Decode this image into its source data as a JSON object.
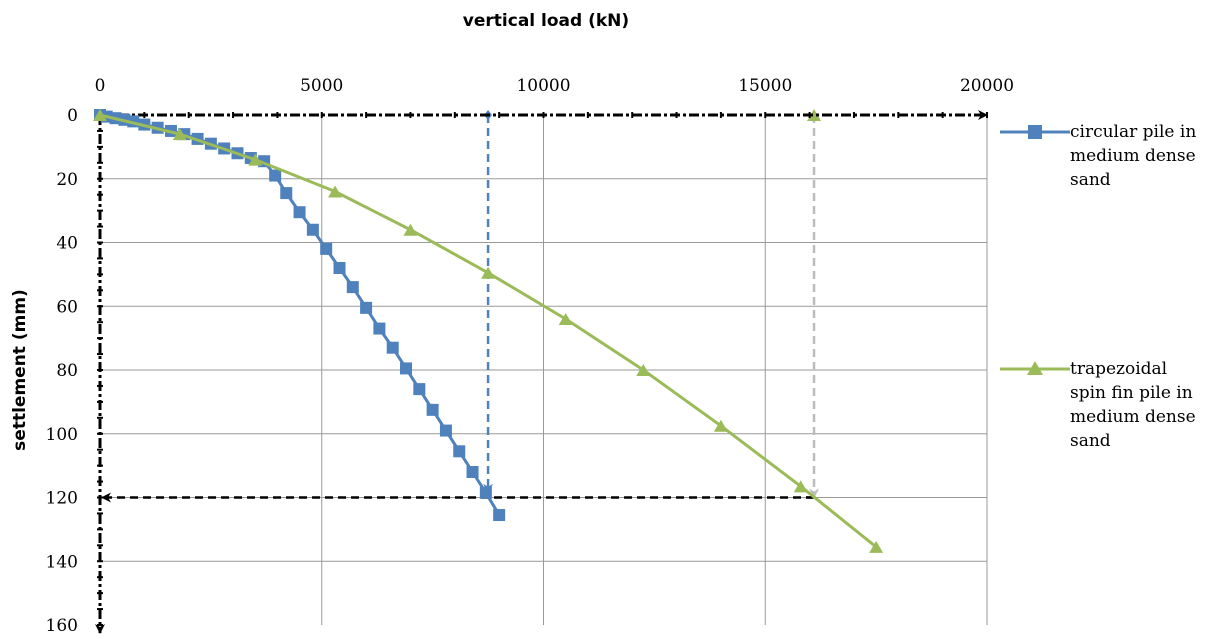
{
  "chart_data": {
    "type": "line",
    "title": "",
    "xlabel": "vertical load (kN)",
    "ylabel": "settlement (mm)",
    "xlim": [
      0,
      20000
    ],
    "ylim": [
      0,
      160
    ],
    "y_inverted": true,
    "x_axis_position": "top",
    "x_ticks": [
      "0",
      "5000",
      "10000",
      "15000",
      "20000"
    ],
    "y_ticks": [
      "0",
      "20",
      "40",
      "60",
      "80",
      "100",
      "120",
      "140",
      "160"
    ],
    "grid": true,
    "legend_position": "right",
    "series": [
      {
        "name": "circular pile in medium dense sand",
        "color": "#4f81bd",
        "marker": "square",
        "x": [
          0,
          150,
          350,
          550,
          750,
          1000,
          1300,
          1600,
          1900,
          2200,
          2500,
          2800,
          3100,
          3400,
          3700,
          3950,
          4200,
          4500,
          4800,
          5100,
          5400,
          5700,
          6000,
          6300,
          6600,
          6900,
          7200,
          7500,
          7800,
          8100,
          8400,
          8700,
          9000
        ],
        "y": [
          0,
          0.5,
          1,
          1.5,
          2,
          3,
          4,
          5,
          6,
          7.5,
          9,
          10.5,
          12,
          13.5,
          14.5,
          19,
          24.5,
          30.5,
          36,
          42,
          48,
          54,
          60.5,
          67,
          73,
          79.5,
          86,
          92.5,
          99,
          105.5,
          112,
          118.5,
          125.5
        ]
      },
      {
        "name": "trapezoidal spin fin pile in medium dense sand",
        "color": "#9bbb59",
        "marker": "triangle",
        "x": [
          0,
          1800,
          3500,
          5300,
          7000,
          8750,
          10500,
          12250,
          14000,
          15800,
          17500
        ],
        "y": [
          0,
          6,
          14,
          24,
          36,
          49.5,
          64,
          80,
          97.5,
          116.5,
          135.5
        ]
      }
    ],
    "annotations": [
      {
        "type": "vertical-dashed",
        "x": 8750,
        "y_from": 0,
        "y_to": 118.5,
        "color": "#4f81bd"
      },
      {
        "type": "vertical-dashed",
        "x": 16100,
        "y_from": 0,
        "y_to": 120,
        "color": "#c6c6c6"
      },
      {
        "type": "horizontal-dashed",
        "y": 120,
        "x_from": 0,
        "x_to": 16100,
        "color": "#000000"
      }
    ]
  }
}
